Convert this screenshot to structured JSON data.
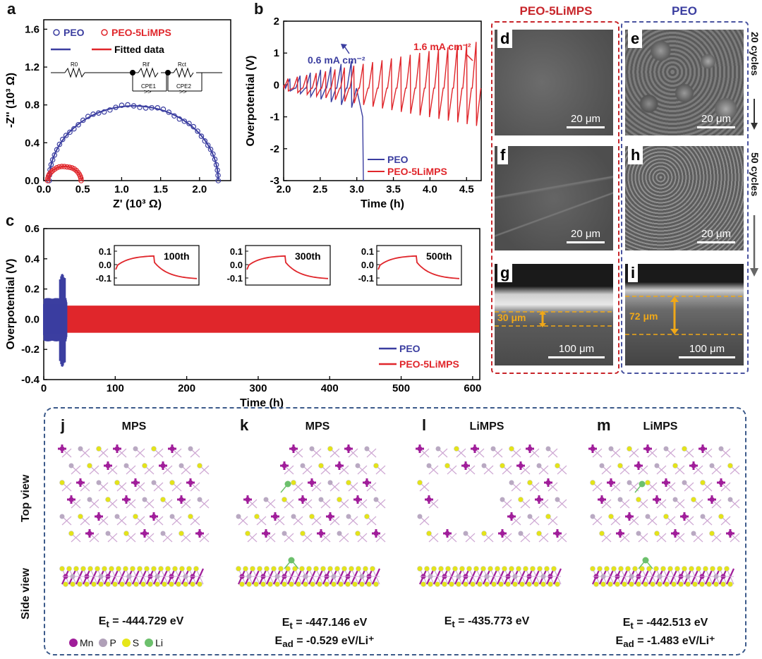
{
  "panels": {
    "a": "a",
    "b": "b",
    "c": "c",
    "d": "d",
    "e": "e",
    "f": "f",
    "g": "g",
    "h": "h",
    "i": "i",
    "j": "j",
    "k": "k",
    "l": "l",
    "m": "m"
  },
  "colors": {
    "peo": "#3b3ea0",
    "limps": "#e0262b",
    "gold": "#f0a818",
    "frame_red": "#c8262b",
    "frame_blue": "#4a54a0",
    "frame_bottom": "#3c5a8a"
  },
  "chart_data": [
    {
      "id": "a",
      "type": "scatter",
      "xlabel": "Z' (10³ Ω)",
      "ylabel": "-Z'' (10³ Ω)",
      "xlim": [
        0.0,
        2.4
      ],
      "ylim": [
        0.0,
        1.7
      ],
      "xticks": [
        "0.0",
        "0.5",
        "1.0",
        "1.5",
        "2.0"
      ],
      "yticks": [
        "0.0",
        "0.4",
        "0.8",
        "1.2",
        "1.6"
      ],
      "legend": [
        "PEO",
        "PEO-5LiMPS",
        "Fitted data"
      ],
      "circuit": [
        "R0",
        "Rif",
        "Rct",
        "CPE1",
        "CPE2"
      ],
      "series": [
        {
          "name": "PEO",
          "semicircle": {
            "x_start": 0.07,
            "x_end": 2.24,
            "peak_x": 1.16,
            "peak_y": 0.79
          }
        },
        {
          "name": "PEO-5LiMPS",
          "semicircle": {
            "x_start": 0.05,
            "x_end": 0.48,
            "peak_x": 0.27,
            "peak_y": 0.15
          }
        }
      ]
    },
    {
      "id": "b",
      "type": "line",
      "xlabel": "Time (h)",
      "ylabel": "Overpotential (V)",
      "xlim": [
        2.0,
        4.7
      ],
      "ylim": [
        -3,
        2
      ],
      "xticks": [
        "2.0",
        "2.5",
        "3.0",
        "3.5",
        "4.0",
        "4.5"
      ],
      "yticks": [
        "-3",
        "-2",
        "-1",
        "0",
        "1",
        "2"
      ],
      "annotations": [
        "0.6 mA cm⁻²",
        "1.6 mA cm⁻²"
      ],
      "series": [
        {
          "name": "PEO",
          "cycles": 7,
          "x_start": 2.02,
          "x_end": 3.0,
          "amp_start": 0.2,
          "amp_end": 0.75,
          "drop_to": -3,
          "drop_x": 3.08
        },
        {
          "name": "PEO-5LiMPS",
          "cycles": 21,
          "x_start": 2.0,
          "x_end": 4.7,
          "amp_start": 0.2,
          "amp_end": 1.35
        }
      ]
    },
    {
      "id": "c",
      "type": "line",
      "xlabel": "Time (h)",
      "ylabel": "Overpotential (V)",
      "xlim": [
        0,
        610
      ],
      "ylim": [
        -0.4,
        0.6
      ],
      "xticks": [
        "0",
        "100",
        "200",
        "300",
        "400",
        "500",
        "600"
      ],
      "yticks": [
        "-0.4",
        "-0.2",
        "0.0",
        "0.2",
        "0.4",
        "0.6"
      ],
      "series": [
        {
          "name": "PEO",
          "x_end": 32,
          "max": 0.3,
          "min": -0.32
        },
        {
          "name": "PEO-5LiMPS",
          "x_end": 610,
          "max": 0.09,
          "min": -0.09
        }
      ],
      "insets": [
        {
          "label": "100th",
          "yticks": [
            "0.1",
            "0.0",
            "-0.1"
          ]
        },
        {
          "label": "300th",
          "yticks": [
            "0.1",
            "0.0",
            "-0.1"
          ]
        },
        {
          "label": "500th",
          "yticks": [
            "0.1",
            "0.0",
            "-0.1"
          ]
        }
      ]
    }
  ],
  "sem": {
    "header_left": "PEO-5LiMPS",
    "header_right": "PEO",
    "cycles_20": "20 cycles",
    "cycles_50": "50 cycles",
    "scale_20": "20 μm",
    "scale_100": "100 μm",
    "thick_g": "30 μm",
    "thick_i": "72 μm"
  },
  "structures": {
    "top_view": "Top view",
    "side_view": "Side view",
    "cols": [
      {
        "title": "MPS",
        "et": "-444.729 eV",
        "ead": ""
      },
      {
        "title": "MPS",
        "et": "-447.146 eV",
        "ead": "-0.529 eV/Li⁺"
      },
      {
        "title": "LiMPS",
        "et": "-435.773 eV",
        "ead": ""
      },
      {
        "title": "LiMPS",
        "et": "-442.513 eV",
        "ead": "-1.483 eV/Li⁺"
      }
    ],
    "et_prefix": "E",
    "et_sub": "t",
    "ead_sub": "ad",
    "equals": " = ",
    "legend": [
      {
        "label": "Mn",
        "color": "#a01d9a"
      },
      {
        "label": "P",
        "color": "#b0a0b8"
      },
      {
        "label": "S",
        "color": "#e6e619"
      },
      {
        "label": "Li",
        "color": "#6cc06c"
      }
    ]
  }
}
